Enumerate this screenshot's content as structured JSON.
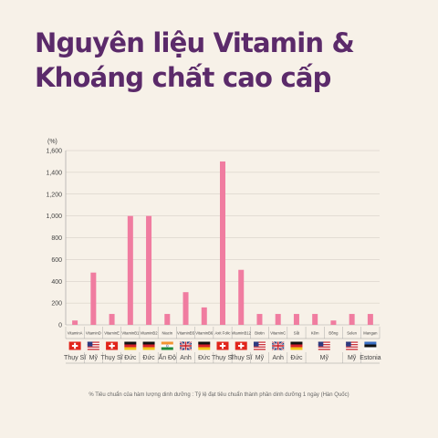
{
  "page": {
    "title_line1": "Nguyên liệu Vitamin &",
    "title_line2": "Khoáng chất cao cấp",
    "footnote": "% Tiêu chuẩn của hàm lượng dinh dưỡng : Tỷ lệ đạt tiêu chuẩn thành phần dinh dưỡng 1 ngày (Hàn Quốc)"
  },
  "colors": {
    "bar": "#f07ca0",
    "title": "#5b2a6a",
    "background": "#f7f1e8",
    "grid": "#cfc8bf"
  },
  "chart_data": {
    "type": "bar",
    "ylabel": "(%)",
    "ylim": [
      0,
      1600
    ],
    "yticks": [
      0,
      200,
      400,
      600,
      800,
      1000,
      1200,
      1400,
      1600
    ],
    "ytick_labels": [
      "0",
      "200",
      "400",
      "600",
      "800",
      "1,000",
      "1,200",
      "1,400",
      "1,600"
    ],
    "grid": true,
    "categories": [
      "VitaminA",
      "VitaminD",
      "VitaminE",
      "VitaminB1",
      "VitaminB2",
      "Niacin",
      "VitaminB5",
      "VitaminB6",
      "Axit Folic",
      "VitaminB12",
      "Biotin",
      "VitaminC",
      "Sắt",
      "Kẽm",
      "Đồng",
      "Selen",
      "Mangan"
    ],
    "values": [
      40,
      480,
      100,
      1000,
      1000,
      100,
      300,
      160,
      1500,
      505,
      100,
      100,
      100,
      100,
      40,
      100,
      100
    ],
    "origins": [
      {
        "label": "Thụy Sĩ",
        "flag": "switzerland-flag",
        "span": 1
      },
      {
        "label": "Mỹ",
        "flag": "usa-flag",
        "span": 1
      },
      {
        "label": "Thụy Sĩ",
        "flag": "switzerland-flag",
        "span": 1
      },
      {
        "label": "Đức",
        "flag": "germany-flag",
        "span": 1
      },
      {
        "label": "Đức",
        "flag": "germany-flag",
        "span": 1
      },
      {
        "label": "Ấn Độ",
        "flag": "india-flag",
        "span": 1
      },
      {
        "label": "Anh",
        "flag": "uk-flag",
        "span": 1
      },
      {
        "label": "Đức",
        "flag": "germany-flag",
        "span": 1
      },
      {
        "label": "Thụy Sĩ",
        "flag": "switzerland-flag",
        "span": 1
      },
      {
        "label": "Thụy Sĩ",
        "flag": "switzerland-flag",
        "span": 1
      },
      {
        "label": "Mỹ",
        "flag": "usa-flag",
        "span": 1
      },
      {
        "label": "Anh",
        "flag": "uk-flag",
        "span": 1
      },
      {
        "label": "Đức",
        "flag": "germany-flag",
        "span": 1
      },
      {
        "label": "Mỹ",
        "flag": "usa-flag",
        "span": 2
      },
      {
        "label": "Mỹ",
        "flag": "usa-flag",
        "span": 1
      },
      {
        "label": "Estonia",
        "flag": "estonia-flag",
        "span": 1
      }
    ]
  }
}
